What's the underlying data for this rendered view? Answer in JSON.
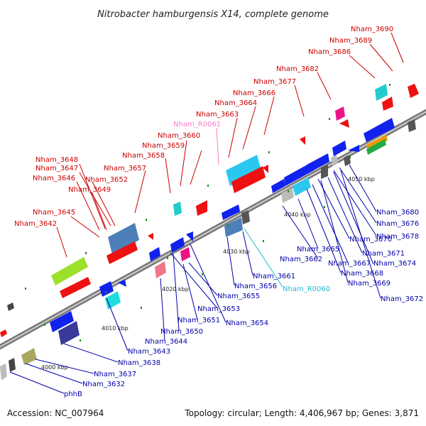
{
  "title": "Nitrobacter hamburgensis X14, complete genome",
  "footer": {
    "accession": "Accession: NC_007964",
    "summary": "Topology: circular; Length: 4,406,967 bp; Genes: 3,871"
  },
  "colors": {
    "forward_label": "#cc0000",
    "reverse_label": "#0000aa",
    "rna_forward_label": "#ff7ac8",
    "rna_reverse_label": "#22bbcc",
    "backbone": "#909090"
  },
  "scale": [
    "4000 kbp",
    "4010 kbp",
    "4020 kbp",
    "4030 kbp",
    "4040 kbp",
    "4050 kbp"
  ],
  "labels_forward": [
    "Nham_3690",
    "Nham_3689",
    "Nham_3686",
    "Nham_3682",
    "Nham_3677",
    "Nham_3666",
    "Nham_3664",
    "Nham_3663",
    "Nham_R0061",
    "Nham_3660",
    "Nham_3659",
    "Nham_3658",
    "Nham_3657",
    "Nham_3648",
    "Nham_3647",
    "Nham_3652",
    "Nham_3646",
    "Nham_3649",
    "Nham_3645",
    "Nham_3642"
  ],
  "labels_reverse": [
    "Nham_3680",
    "Nham_3676",
    "Nham_3678",
    "Nham_3670",
    "Nham_3665",
    "Nham_3671",
    "Nham_3662",
    "Nham_3667",
    "Nham_3674",
    "Nham_3668",
    "Nham_3661",
    "Nham_3669",
    "Nham_3656",
    "Nham_R0060",
    "Nham_3672",
    "Nham_3655",
    "Nham_3653",
    "Nham_3651",
    "Nham_3654",
    "Nham_3650",
    "Nham_3644",
    "Nham_3643",
    "Nham_3638",
    "Nham_3637",
    "Nham_3632",
    "phhB"
  ]
}
